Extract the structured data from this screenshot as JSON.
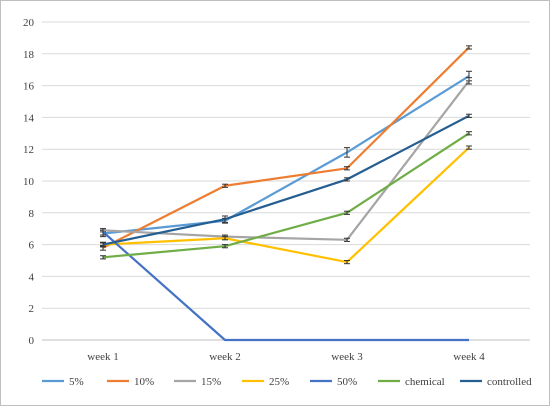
{
  "chart_data": {
    "type": "line",
    "title": "",
    "xlabel": "",
    "ylabel": "",
    "categories": [
      "week 1",
      "week 2",
      "week 3",
      "week 4"
    ],
    "ylim": [
      0,
      20
    ],
    "yticks": [
      0,
      2,
      4,
      6,
      8,
      10,
      12,
      14,
      16,
      18,
      20
    ],
    "grid": true,
    "legend": "bottom",
    "error_bars": true,
    "series": [
      {
        "name": "5%",
        "color": "#5B9BD5",
        "values": [
          6.7,
          7.5,
          11.8,
          16.6
        ],
        "errors": [
          0.2,
          0.15,
          0.3,
          0.3
        ]
      },
      {
        "name": "10%",
        "color": "#ED7D31",
        "values": [
          5.8,
          9.7,
          10.8,
          18.4
        ],
        "errors": [
          0.15,
          0.1,
          0.1,
          0.1
        ]
      },
      {
        "name": "15%",
        "color": "#A5A5A5",
        "values": [
          6.9,
          6.5,
          6.3,
          16.3
        ],
        "errors": [
          0.1,
          0.1,
          0.1,
          0.2
        ]
      },
      {
        "name": "25%",
        "color": "#FFC000",
        "values": [
          6.0,
          6.4,
          4.9,
          12.1
        ],
        "errors": [
          0.1,
          0.1,
          0.1,
          0.1
        ]
      },
      {
        "name": "50%",
        "color": "#4472C4",
        "values": [
          6.8,
          0,
          0,
          0
        ],
        "errors": [
          0.2,
          0,
          0,
          0
        ]
      },
      {
        "name": "chemical",
        "color": "#70AD47",
        "values": [
          5.2,
          5.9,
          8.0,
          13.0
        ],
        "errors": [
          0.1,
          0.1,
          0.1,
          0.1
        ]
      },
      {
        "name": "controlled",
        "color": "#255E91",
        "values": [
          6.0,
          7.6,
          10.1,
          14.1
        ],
        "errors": [
          0.15,
          0.2,
          0.1,
          0.1
        ]
      }
    ]
  }
}
